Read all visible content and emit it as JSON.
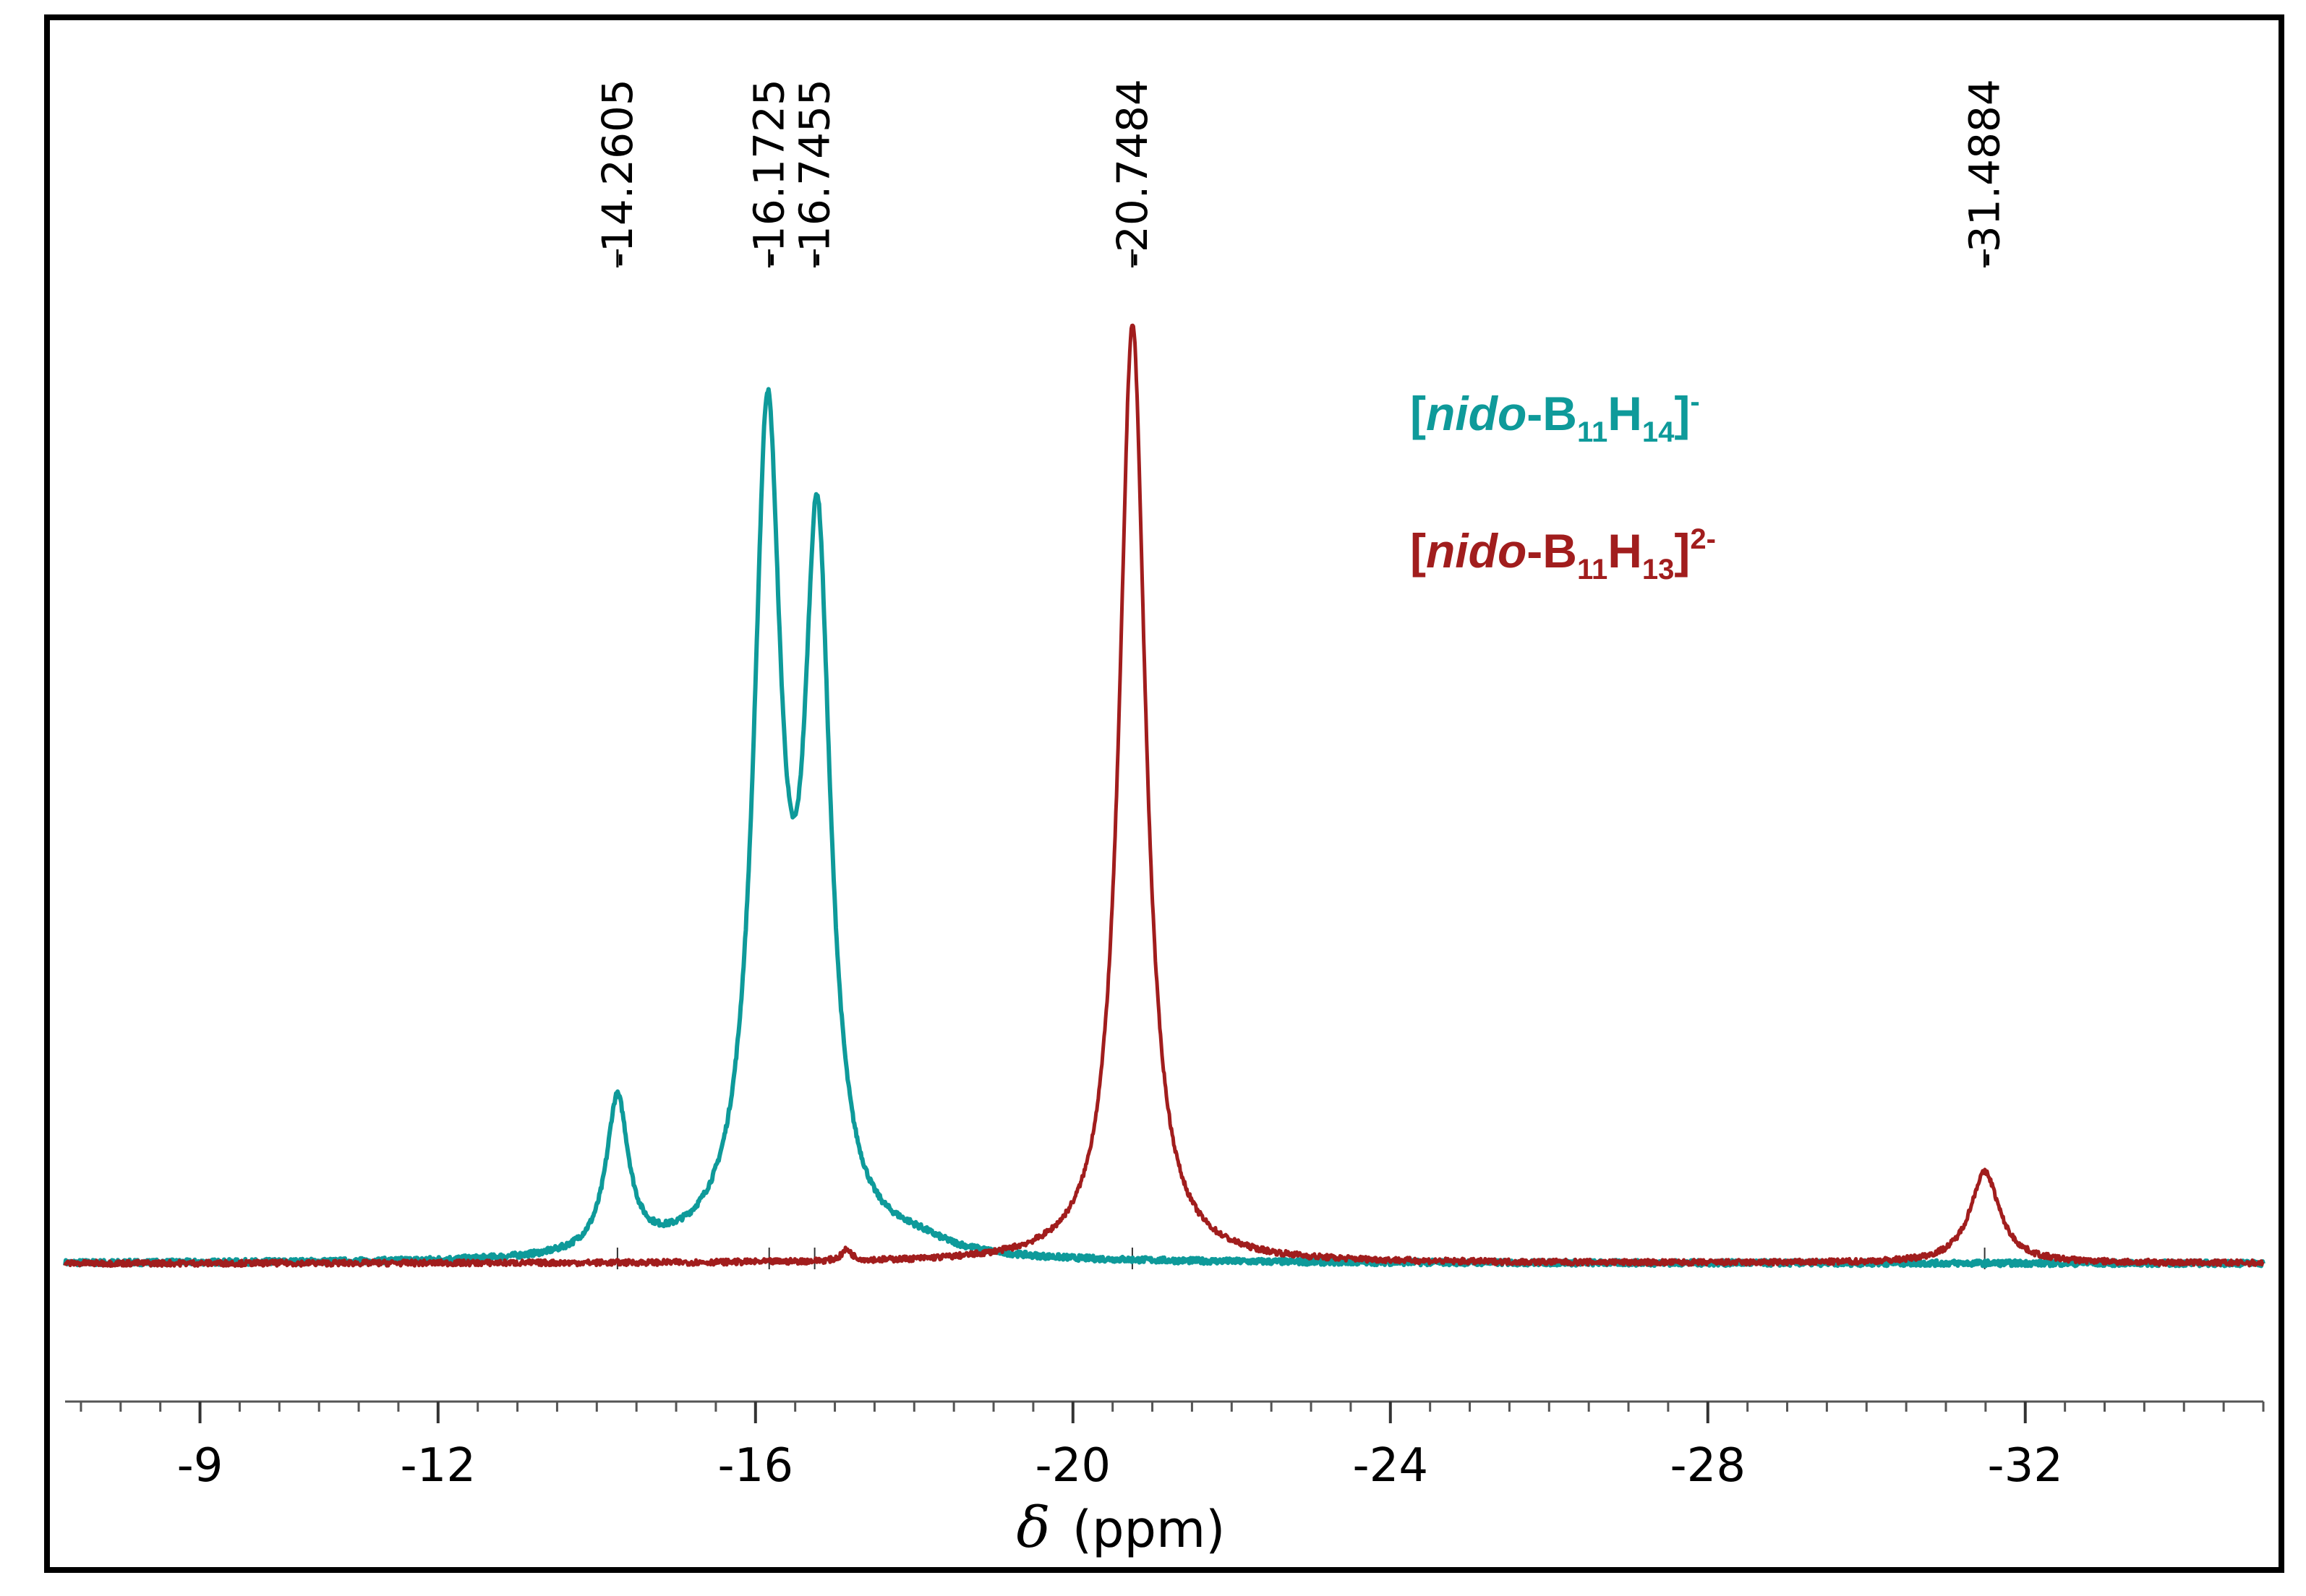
{
  "chart_data": {
    "type": "line",
    "title": "",
    "xlabel": "(ppm)",
    "xlabel_symbol": "δ",
    "ylabel": "",
    "xlim": [
      -7.3,
      -35.0
    ],
    "x_reversed": true,
    "x_ticks": [
      -9,
      -12,
      -16,
      -20,
      -24,
      -28,
      -32
    ],
    "x_tick_labels": [
      "-9",
      "-12",
      "-16",
      "-20",
      "-24",
      "-28",
      "-32"
    ],
    "minor_tick_step": 0.5,
    "grid": false,
    "legend_position": "top-right",
    "peak_labels": [
      {
        "ppm": -14.2605,
        "text": "-14.2605"
      },
      {
        "ppm": -16.1725,
        "text": "-16.1725"
      },
      {
        "ppm": -16.7455,
        "text": "-16.7455"
      },
      {
        "ppm": -20.7484,
        "text": "-20.7484"
      },
      {
        "ppm": -31.4884,
        "text": "-31.4884"
      }
    ],
    "series": [
      {
        "name": "[nido-B11H14]-",
        "color": "#0e9a9a",
        "baseline": 0.0,
        "peaks": [
          {
            "ppm": -14.26,
            "height": 0.165,
            "width": 0.34
          },
          {
            "ppm": -16.15,
            "height": 0.86,
            "width": 0.42
          },
          {
            "ppm": -16.78,
            "height": 0.73,
            "width": 0.4
          },
          {
            "ppm": -18.0,
            "height": 0.012,
            "width": 1.0
          }
        ]
      },
      {
        "name": "[nido-B11H13]2-",
        "color": "#a11d1d",
        "baseline": 0.0,
        "peaks": [
          {
            "ppm": -20.75,
            "height": 1.0,
            "width": 0.4
          },
          {
            "ppm": -31.49,
            "height": 0.097,
            "width": 0.45
          },
          {
            "ppm": -17.15,
            "height": 0.012,
            "width": 0.15
          }
        ]
      }
    ]
  },
  "legend": {
    "items": [
      {
        "open": "[",
        "prefix": "nido",
        "dash": "-B",
        "sub1": "11",
        "h": "H",
        "sub2": "14",
        "close": "]",
        "sup": "-",
        "color": "#0e9a9a"
      },
      {
        "open": "[",
        "prefix": "nido",
        "dash": "-B",
        "sub1": "11",
        "h": "H",
        "sub2": "13",
        "close": "]",
        "sup": "2-",
        "color": "#a11d1d"
      }
    ]
  }
}
